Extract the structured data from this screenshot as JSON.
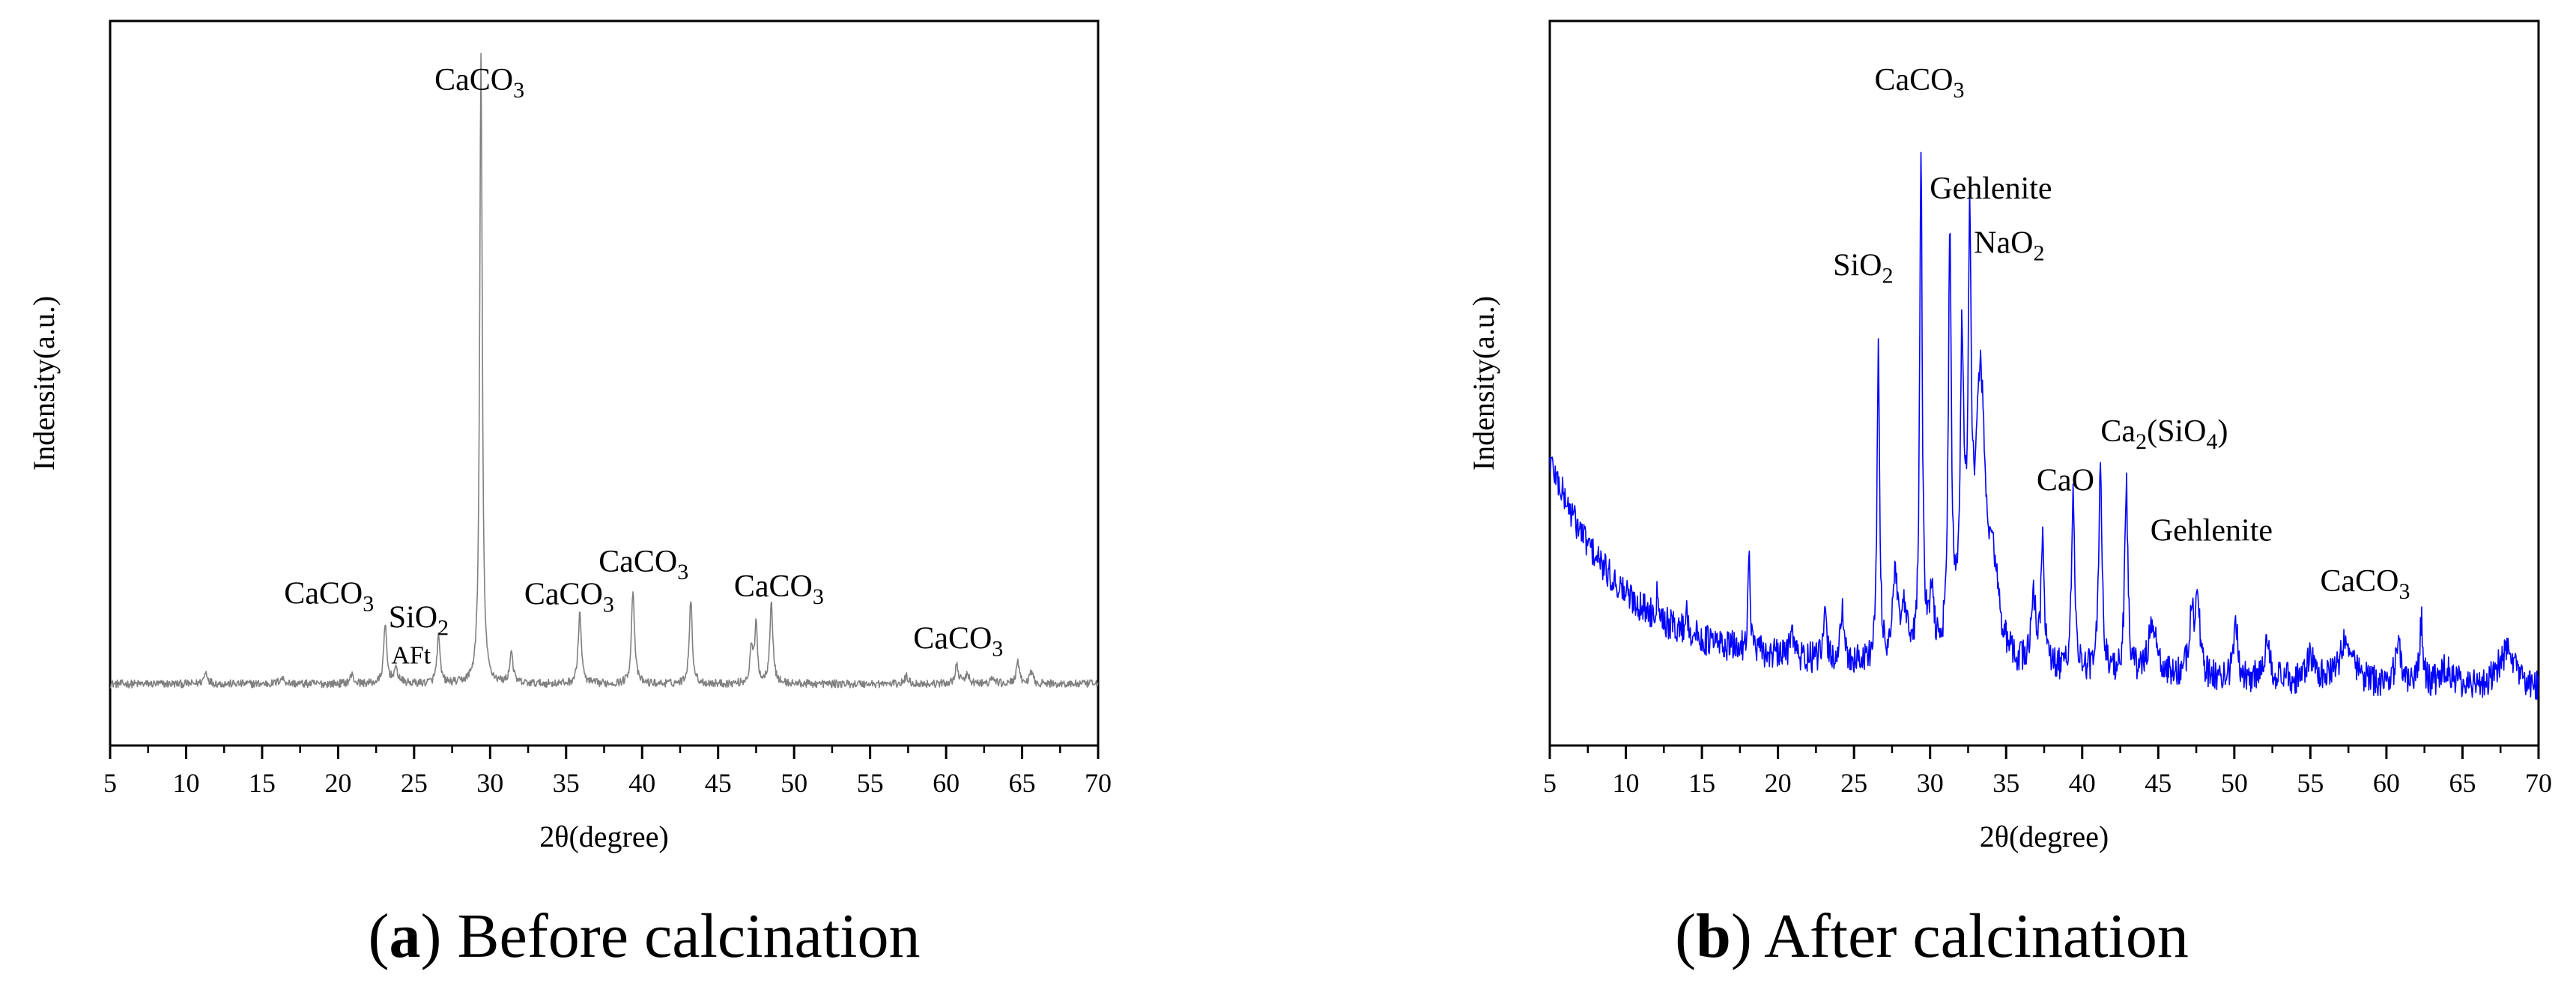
{
  "charts": [
    {
      "id": "a",
      "caption_letter": "a",
      "caption_text": "Before calcination",
      "line_color": "#808080"
    },
    {
      "id": "b",
      "caption_letter": "b",
      "caption_text": "After calcination",
      "line_color": "#0000ff"
    }
  ],
  "chart_data": [
    {
      "type": "line",
      "title": "(a) Before calcination",
      "xlabel": "2θ(degree)",
      "ylabel": "Indensity(a.u.)",
      "xlim": [
        5,
        70
      ],
      "ylim": [
        0,
        100
      ],
      "xticks": [
        5,
        10,
        15,
        20,
        25,
        30,
        35,
        40,
        45,
        50,
        55,
        60,
        65,
        70
      ],
      "yticks_shown": false,
      "baseline": 8.5,
      "baseline_slope": 0.0,
      "noise": 0.55,
      "curvature": 0,
      "peaks": [
        {
          "x": 11.3,
          "h": 1.6,
          "w": 0.15
        },
        {
          "x": 16.3,
          "h": 0.8,
          "w": 0.2
        },
        {
          "x": 20.9,
          "h": 1.2,
          "w": 0.15
        },
        {
          "x": 23.1,
          "h": 8.0,
          "w": 0.12
        },
        {
          "x": 23.8,
          "h": 1.8,
          "w": 0.2
        },
        {
          "x": 26.6,
          "h": 6.5,
          "w": 0.12
        },
        {
          "x": 29.4,
          "h": 87.0,
          "w": 0.1
        },
        {
          "x": 31.4,
          "h": 4.5,
          "w": 0.12
        },
        {
          "x": 35.9,
          "h": 10.0,
          "w": 0.12
        },
        {
          "x": 39.4,
          "h": 13.0,
          "w": 0.12
        },
        {
          "x": 43.2,
          "h": 11.5,
          "w": 0.12
        },
        {
          "x": 47.2,
          "h": 5.0,
          "w": 0.12
        },
        {
          "x": 47.5,
          "h": 8.0,
          "w": 0.1
        },
        {
          "x": 48.5,
          "h": 11.5,
          "w": 0.12
        },
        {
          "x": 57.4,
          "h": 1.0,
          "w": 0.15
        },
        {
          "x": 60.7,
          "h": 2.4,
          "w": 0.15
        },
        {
          "x": 61.4,
          "h": 1.2,
          "w": 0.15
        },
        {
          "x": 63.1,
          "h": 0.8,
          "w": 0.15
        },
        {
          "x": 64.7,
          "h": 3.0,
          "w": 0.12
        },
        {
          "x": 65.6,
          "h": 1.5,
          "w": 0.15
        }
      ],
      "annotations": [
        {
          "text": "CaCO",
          "sub": "3",
          "x": 29.3,
          "y": 90.5,
          "size": "normal"
        },
        {
          "text": "CaCO",
          "sub": "3",
          "x": 19.4,
          "y": 19.6,
          "size": "normal"
        },
        {
          "text": "SiO",
          "sub": "2",
          "x": 25.3,
          "y": 16.3,
          "size": "normal"
        },
        {
          "text": "AFt",
          "sub": "",
          "x": 24.8,
          "y": 11.3,
          "size": "small"
        },
        {
          "text": "CaCO",
          "sub": "3",
          "x": 35.2,
          "y": 19.5,
          "size": "normal"
        },
        {
          "text": "CaCO",
          "sub": "3",
          "x": 40.1,
          "y": 24.0,
          "size": "normal"
        },
        {
          "text": "CaCO",
          "sub": "3",
          "x": 49.0,
          "y": 20.6,
          "size": "normal"
        },
        {
          "text": "CaCO",
          "sub": "3",
          "x": 60.8,
          "y": 13.4,
          "size": "normal"
        }
      ]
    },
    {
      "type": "line",
      "title": "(b) After calcination",
      "xlabel": "2θ(degree)",
      "ylabel": "Indensity(a.u.)",
      "xlim": [
        5,
        70
      ],
      "ylim": [
        0,
        100
      ],
      "xticks": [
        5,
        10,
        15,
        20,
        25,
        30,
        35,
        40,
        45,
        50,
        55,
        60,
        65,
        70
      ],
      "yticks_shown": false,
      "baseline": 12.5,
      "baseline_slope": -0.075,
      "noise": 2.2,
      "curvature": 27,
      "peaks": [
        {
          "x": 12.1,
          "h": 4.0,
          "w": 0.12
        },
        {
          "x": 14.0,
          "h": 3.0,
          "w": 0.12
        },
        {
          "x": 18.1,
          "h": 12.5,
          "w": 0.1
        },
        {
          "x": 20.9,
          "h": 5.5,
          "w": 0.12
        },
        {
          "x": 23.1,
          "h": 6.0,
          "w": 0.12
        },
        {
          "x": 24.2,
          "h": 7.0,
          "w": 0.12
        },
        {
          "x": 26.6,
          "h": 42.0,
          "w": 0.1
        },
        {
          "x": 27.7,
          "h": 11.0,
          "w": 0.2
        },
        {
          "x": 28.3,
          "h": 6.0,
          "w": 0.25
        },
        {
          "x": 29.4,
          "h": 70.0,
          "w": 0.1
        },
        {
          "x": 30.1,
          "h": 8.0,
          "w": 0.2
        },
        {
          "x": 31.3,
          "h": 57.0,
          "w": 0.12
        },
        {
          "x": 32.1,
          "h": 40.0,
          "w": 0.15
        },
        {
          "x": 32.6,
          "h": 51.0,
          "w": 0.12
        },
        {
          "x": 33.3,
          "h": 38.0,
          "w": 0.4
        },
        {
          "x": 34.2,
          "h": 10.0,
          "w": 0.4
        },
        {
          "x": 36.8,
          "h": 9.0,
          "w": 0.2
        },
        {
          "x": 37.4,
          "h": 18.0,
          "w": 0.12
        },
        {
          "x": 39.4,
          "h": 25.0,
          "w": 0.12
        },
        {
          "x": 41.2,
          "h": 30.0,
          "w": 0.12
        },
        {
          "x": 42.9,
          "h": 26.0,
          "w": 0.12
        },
        {
          "x": 44.6,
          "h": 7.0,
          "w": 0.3
        },
        {
          "x": 47.2,
          "h": 8.0,
          "w": 0.2
        },
        {
          "x": 47.6,
          "h": 11.0,
          "w": 0.15
        },
        {
          "x": 50.1,
          "h": 8.0,
          "w": 0.15
        },
        {
          "x": 52.2,
          "h": 6.0,
          "w": 0.2
        },
        {
          "x": 55.0,
          "h": 3.0,
          "w": 0.3
        },
        {
          "x": 57.4,
          "h": 6.0,
          "w": 0.5
        },
        {
          "x": 60.8,
          "h": 5.0,
          "w": 0.25
        },
        {
          "x": 62.3,
          "h": 9.0,
          "w": 0.12
        },
        {
          "x": 64.0,
          "h": 2.5,
          "w": 0.4
        },
        {
          "x": 67.9,
          "h": 5.0,
          "w": 0.7
        }
      ],
      "annotations": [
        {
          "text": "CaCO",
          "sub": "3",
          "x": 29.3,
          "y": 90.5,
          "size": "normal"
        },
        {
          "text": "Gehlenite",
          "sub": "",
          "x": 34.0,
          "y": 75.5,
          "size": "normal"
        },
        {
          "text": "NaO",
          "sub": "2",
          "x": 35.2,
          "y": 68.0,
          "size": "normal"
        },
        {
          "text": "SiO",
          "sub": "2",
          "x": 25.6,
          "y": 64.9,
          "size": "normal"
        },
        {
          "text": "Ca",
          "sub": "2",
          "tail": "(SiO",
          "sub2": "4",
          "tail2": ")",
          "x": 45.4,
          "y": 42.0,
          "size": "normal"
        },
        {
          "text": "CaO",
          "sub": "",
          "x": 38.9,
          "y": 35.2,
          "size": "normal"
        },
        {
          "text": "Gehlenite",
          "sub": "",
          "x": 48.5,
          "y": 28.3,
          "size": "normal"
        },
        {
          "text": "CaCO",
          "sub": "3",
          "x": 58.6,
          "y": 21.3,
          "size": "normal"
        }
      ]
    }
  ]
}
